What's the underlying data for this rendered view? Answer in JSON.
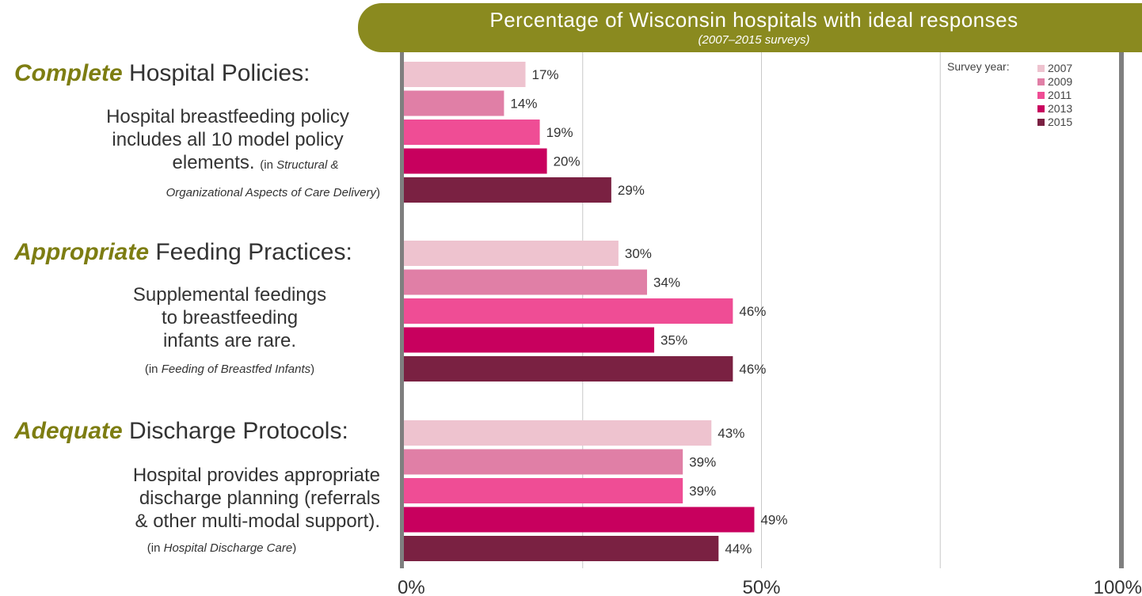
{
  "header": {
    "title": "Percentage of Wisconsin hospitals with ideal responses",
    "subtitle": "(2007–2015 surveys)"
  },
  "groups": [
    {
      "keyword": "Complete",
      "title_rest": " Hospital Policies:",
      "desc_lines": [
        "Hospital breastfeeding policy",
        "includes all 10 model policy",
        "elements."
      ],
      "src_prefix": "(in ",
      "src_italic_1": "Structural &",
      "src_italic_2": "Organizational Aspects of Care Delivery",
      "src_suffix": ")"
    },
    {
      "keyword": "Appropriate",
      "title_rest": " Feeding Practices:",
      "desc_lines": [
        "Supplemental feedings",
        "to breastfeeding",
        "infants are rare."
      ],
      "src_prefix": "(in ",
      "src_italic": "Feeding of Breastfed Infants",
      "src_suffix": ")"
    },
    {
      "keyword": "Adequate",
      "title_rest": " Discharge Protocols:",
      "desc_lines": [
        "Hospital provides appropriate",
        "discharge planning (referrals",
        "& other multi-modal support)."
      ],
      "src_prefix": "(in ",
      "src_italic": "Hospital Discharge Care",
      "src_suffix": ")"
    }
  ],
  "legend": {
    "label": "Survey year:"
  },
  "chart_data": {
    "type": "bar",
    "orientation": "horizontal",
    "title": "Percentage of Wisconsin hospitals with ideal responses",
    "subtitle": "(2007–2015 surveys)",
    "categories": [
      "Complete Hospital Policies",
      "Appropriate Feeding Practices",
      "Adequate Discharge Protocols"
    ],
    "series": [
      {
        "name": "2007",
        "color": "#eec3cf",
        "values": [
          17,
          30,
          43
        ]
      },
      {
        "name": "2009",
        "color": "#e07fa6",
        "values": [
          14,
          34,
          39
        ]
      },
      {
        "name": "2011",
        "color": "#ef4d95",
        "values": [
          19,
          46,
          39
        ]
      },
      {
        "name": "2013",
        "color": "#c8005e",
        "values": [
          20,
          35,
          49
        ]
      },
      {
        "name": "2015",
        "color": "#7a2142",
        "values": [
          29,
          46,
          44
        ]
      }
    ],
    "value_suffix": "%",
    "xlim": [
      0,
      100
    ],
    "tick_labels": [
      "0%",
      "50%",
      "100%"
    ],
    "grid": true,
    "legend_position": "top-right"
  }
}
